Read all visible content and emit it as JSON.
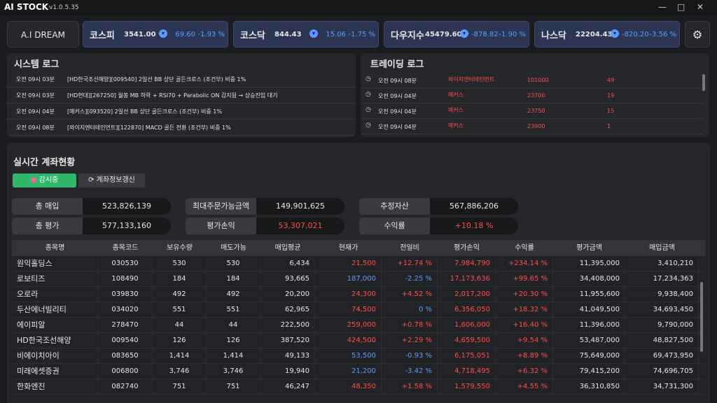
{
  "app": {
    "logo": "AI STOCK",
    "version": "v1.0.5.35",
    "profile": "A.I DREAM"
  },
  "indices": [
    {
      "name": "코스피",
      "value": "3541.00",
      "change": "69.60",
      "pct": "-1.93 %",
      "color": "#5b9bff"
    },
    {
      "name": "코스닥",
      "value": "844.43",
      "change": "15.06",
      "pct": "-1.75 %",
      "color": "#5b9bff"
    },
    {
      "name": "다우지수",
      "value": "45479.60",
      "change": "-878.82",
      "pct": "-1.90 %",
      "color": "#5b9bff"
    },
    {
      "name": "나스닥",
      "value": "22204.43",
      "change": "-820.20",
      "pct": "-3.56 %",
      "color": "#5b9bff"
    }
  ],
  "system_log": {
    "title": "시스템 로그",
    "rows": [
      {
        "time": "오전 09시 03분",
        "message": "[HD한국조선해양][009540] 2일선 BB 상단 골든크로스 (조건부) 비중 1%"
      },
      {
        "time": "오전 09시 03분",
        "message": "[HD현대][267250] 월봉 MB 하락 + RSI70 + Parabolic ON 감지됨 → 상승진입 대기"
      },
      {
        "time": "오전 09시 04분",
        "message": "[매커스][093520] 2일선 BB 상단 골든크로스 (조건부) 비중 1%"
      },
      {
        "time": "오전 09시 08분",
        "message": "[와이지엔터테인먼트][122870] MACD 골든 전환 (조건부) 비중 1%"
      }
    ]
  },
  "trading_log": {
    "title": "트레이딩 로그",
    "rows": [
      {
        "time": "오전 09시 08분",
        "name": "와이지엔터테인먼트",
        "price": "101000",
        "qty": "49"
      },
      {
        "time": "오전 09시 04분",
        "name": "매커스",
        "price": "23700",
        "qty": "19"
      },
      {
        "time": "오전 09시 04분",
        "name": "매커스",
        "price": "23750",
        "qty": "15"
      },
      {
        "time": "오전 09시 04분",
        "name": "매커스",
        "price": "23900",
        "qty": "1"
      }
    ]
  },
  "account": {
    "title": "실시간 계좌현황",
    "buttons": [
      "감시중",
      "계좌정보갱신"
    ],
    "summary": [
      {
        "label": "총 매입",
        "value": "523,826,139",
        "color": "#e6e6e6"
      },
      {
        "label": "총 평가",
        "value": "577,133,160",
        "color": "#e6e6e6"
      },
      {
        "label": "최대주문가능금액",
        "value": "149,901,625",
        "color": "#e6e6e6"
      },
      {
        "label": "평가손익",
        "value": "53,307,021",
        "color": "#ff4d4d"
      },
      {
        "label": "추정자산",
        "value": "567,886,206",
        "color": "#e6e6e6"
      },
      {
        "label": "수익률",
        "value": "+10.18 %",
        "color": "#ff4d4d"
      }
    ],
    "table": {
      "columns": [
        "종목명",
        "종목코드",
        "보유수량",
        "매도가능",
        "매입평균",
        "현재가",
        "전일비",
        "평가손익",
        "수익률",
        "평가금액",
        "매입금액"
      ],
      "rows": [
        {
          "cells": [
            "원익홀딩스",
            "030530",
            "530",
            "530",
            "6,434",
            "21,500",
            "+12.74 %",
            "7,984,790",
            "+234.14 %",
            "11,395,000",
            "3,410,210"
          ],
          "price_color": "#ff4d4d",
          "change_color": "#ff4d4d",
          "pnl_color": "#ff4d4d"
        },
        {
          "cells": [
            "로보티즈",
            "108490",
            "184",
            "184",
            "93,665",
            "187,000",
            "-2.25 %",
            "17,173,636",
            "+99.65 %",
            "34,408,000",
            "17,234,363"
          ],
          "price_color": "#5b9bff",
          "change_color": "#5b9bff",
          "pnl_color": "#ff4d4d"
        },
        {
          "cells": [
            "오로라",
            "039830",
            "492",
            "492",
            "20,200",
            "24,300",
            "+4.52 %",
            "2,017,200",
            "+20.30 %",
            "11,955,600",
            "9,938,400"
          ],
          "price_color": "#ff4d4d",
          "change_color": "#ff4d4d",
          "pnl_color": "#ff4d4d"
        },
        {
          "cells": [
            "두산에너빌리티",
            "034020",
            "551",
            "551",
            "62,965",
            "74,500",
            "0 %",
            "6,356,050",
            "+18.32 %",
            "41,049,500",
            "34,693,450"
          ],
          "price_color": "#ff4d4d",
          "change_color": "#5b9bff",
          "pnl_color": "#ff4d4d"
        },
        {
          "cells": [
            "에이피알",
            "278470",
            "44",
            "44",
            "222,500",
            "259,000",
            "+0.78 %",
            "1,606,000",
            "+16.40 %",
            "11,396,000",
            "9,790,000"
          ],
          "price_color": "#ff4d4d",
          "change_color": "#ff4d4d",
          "pnl_color": "#ff4d4d"
        },
        {
          "cells": [
            "HD한국조선해양",
            "009540",
            "126",
            "126",
            "387,520",
            "424,500",
            "+2.29 %",
            "4,659,500",
            "+9.54 %",
            "53,487,000",
            "48,827,500"
          ],
          "price_color": "#ff4d4d",
          "change_color": "#ff4d4d",
          "pnl_color": "#ff4d4d"
        },
        {
          "cells": [
            "비에이치아이",
            "083650",
            "1,414",
            "1,414",
            "49,133",
            "53,500",
            "-0.93 %",
            "6,175,051",
            "+8.89 %",
            "75,649,000",
            "69,473,950"
          ],
          "price_color": "#5b9bff",
          "change_color": "#5b9bff",
          "pnl_color": "#ff4d4d"
        },
        {
          "cells": [
            "미래에셋증권",
            "006800",
            "3,746",
            "3,746",
            "19,940",
            "21,200",
            "-3.42 %",
            "4,718,495",
            "+6.32 %",
            "79,415,200",
            "74,696,705"
          ],
          "price_color": "#5b9bff",
          "change_color": "#5b9bff",
          "pnl_color": "#ff4d4d"
        },
        {
          "cells": [
            "한화엔진",
            "082740",
            "751",
            "751",
            "46,247",
            "48,350",
            "+1.58 %",
            "1,579,550",
            "+4.55 %",
            "36,310,850",
            "34,731,300"
          ],
          "price_color": "#ff4d4d",
          "change_color": "#ff4d4d",
          "pnl_color": "#ff4d4d"
        }
      ]
    }
  }
}
